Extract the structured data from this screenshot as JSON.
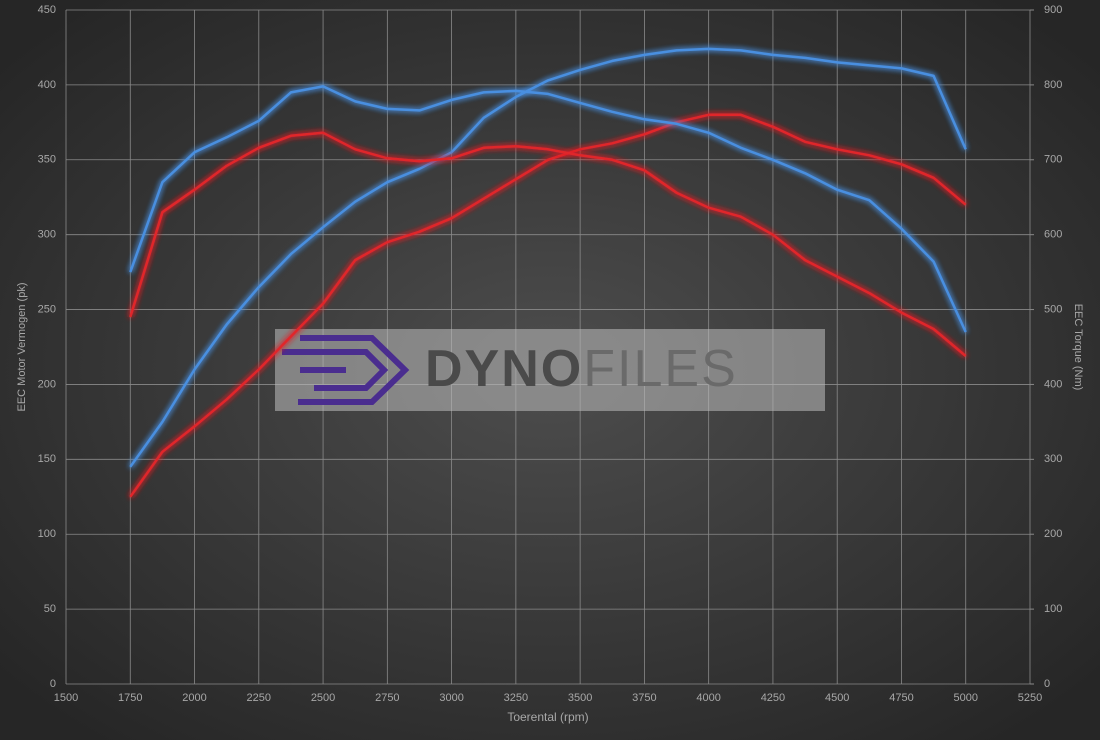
{
  "chart_data": {
    "type": "line",
    "x_label": "Toerental (rpm)",
    "y_label": "EEC Motor Vermogen (pk)",
    "y2_label": "EEC Torque (Nm)",
    "watermark": [
      "DYNO",
      "FILES"
    ],
    "x": [
      1750,
      1875,
      2000,
      2125,
      2250,
      2375,
      2500,
      2625,
      2750,
      2875,
      3000,
      3125,
      3250,
      3375,
      3500,
      3625,
      3750,
      3875,
      4000,
      4125,
      4250,
      4375,
      4500,
      4625,
      4750,
      4875,
      5000
    ],
    "xlim": [
      1500,
      5250
    ],
    "xticks": [
      1500,
      1750,
      2000,
      2250,
      2500,
      2750,
      3000,
      3250,
      3500,
      3750,
      4000,
      4250,
      4500,
      4750,
      5000,
      5250
    ],
    "ylim": [
      0,
      450
    ],
    "yticks": [
      0,
      50,
      100,
      150,
      200,
      250,
      300,
      350,
      400,
      450
    ],
    "y2lim": [
      0,
      900
    ],
    "y2ticks": [
      0,
      100,
      200,
      300,
      400,
      500,
      600,
      700,
      800,
      900
    ],
    "grid": true,
    "series": [
      {
        "color": "#4a8fe0",
        "values": [
          145,
          175,
          210,
          240,
          265,
          287,
          305,
          322,
          335,
          344,
          355,
          378,
          392,
          403,
          410,
          416,
          420,
          423,
          424,
          423,
          420,
          418,
          415,
          413,
          411,
          406,
          357
        ]
      },
      {
        "color": "#e0262a",
        "values": [
          125,
          155,
          172,
          190,
          210,
          232,
          254,
          283,
          295,
          302,
          311,
          324,
          337,
          350,
          357,
          361,
          367,
          375,
          380,
          380,
          372,
          362,
          357,
          353,
          347,
          338,
          320
        ]
      },
      {
        "color": "#4a8fe0",
        "axis": "y2",
        "values": [
          550,
          670,
          710,
          730,
          752,
          790,
          798,
          778,
          768,
          766,
          780,
          790,
          792,
          788,
          776,
          764,
          754,
          748,
          736,
          716,
          700,
          682,
          660,
          646,
          608,
          564,
          470
        ]
      },
      {
        "color": "#e0262a",
        "axis": "y2",
        "values": [
          490,
          630,
          660,
          692,
          716,
          732,
          736,
          714,
          702,
          698,
          702,
          716,
          718,
          714,
          706,
          700,
          686,
          656,
          636,
          624,
          600,
          566,
          544,
          522,
          496,
          474,
          438
        ]
      }
    ]
  }
}
